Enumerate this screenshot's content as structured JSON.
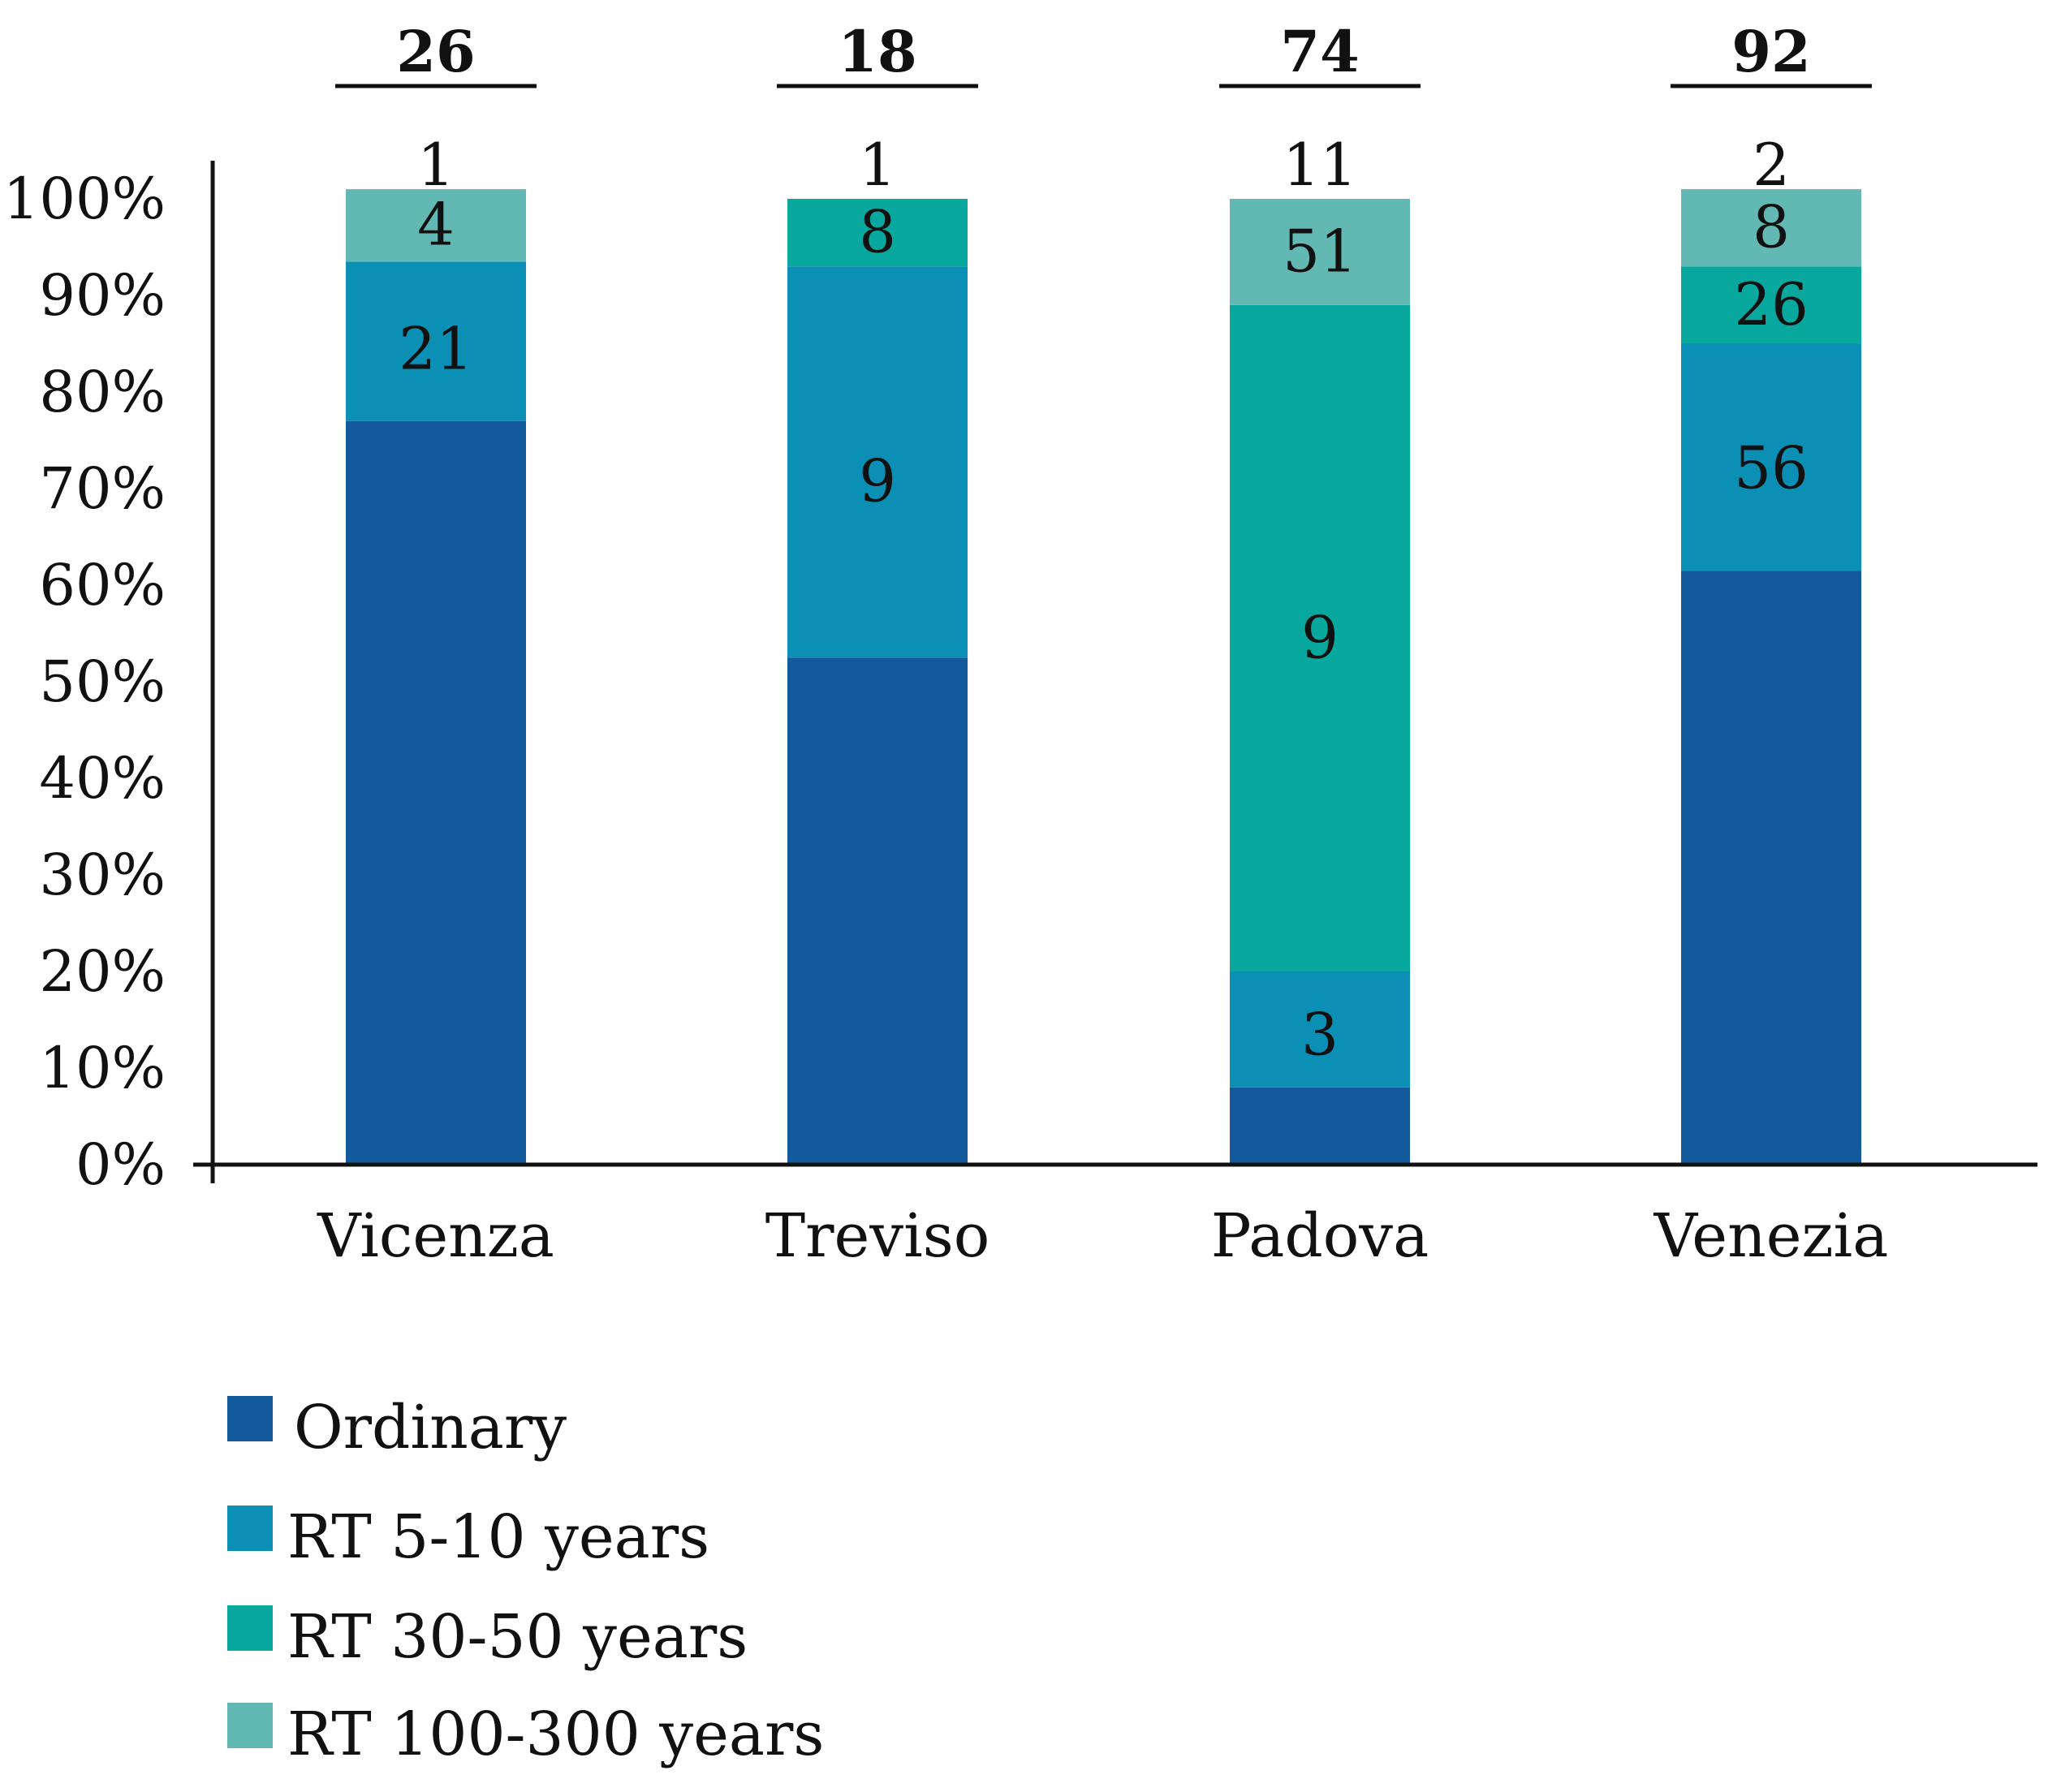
{
  "chart_data": {
    "type": "bar",
    "stacked": true,
    "normalized": true,
    "title": "",
    "xlabel": "",
    "ylabel": "",
    "ylim": [
      0,
      100
    ],
    "y_ticks": [
      "0%",
      "10%",
      "20%",
      "30%",
      "40%",
      "50%",
      "60%",
      "70%",
      "80%",
      "90%",
      "100%"
    ],
    "categories": [
      "Vicenza",
      "Treviso",
      "Padova",
      "Venezia"
    ],
    "totals": [
      "26",
      "18",
      "74",
      "92"
    ],
    "series": [
      {
        "name": "Ordinary",
        "color": "#125a9b",
        "percent": [
          77,
          52.5,
          8,
          61.5
        ],
        "labels": [
          "",
          "",
          "",
          ""
        ]
      },
      {
        "name": "RT 5-10 years",
        "color": "#0c8fb5",
        "percent": [
          16.5,
          40.5,
          12,
          23.5
        ],
        "labels": [
          "21",
          "9",
          "3",
          "56"
        ]
      },
      {
        "name": "RT 30-50 years",
        "color": "#08a89e",
        "percent": [
          0,
          7,
          69,
          8
        ],
        "labels": [
          "",
          "8",
          "9",
          "26"
        ]
      },
      {
        "name": "RT 100-300 years",
        "color": "#62b8b2",
        "percent": [
          7.5,
          0,
          11,
          8
        ],
        "labels": [
          "4",
          "",
          "51",
          "8"
        ]
      }
    ],
    "top_labels": [
      "1",
      "1",
      "11",
      "2"
    ],
    "legend_position": "bottom-left"
  }
}
